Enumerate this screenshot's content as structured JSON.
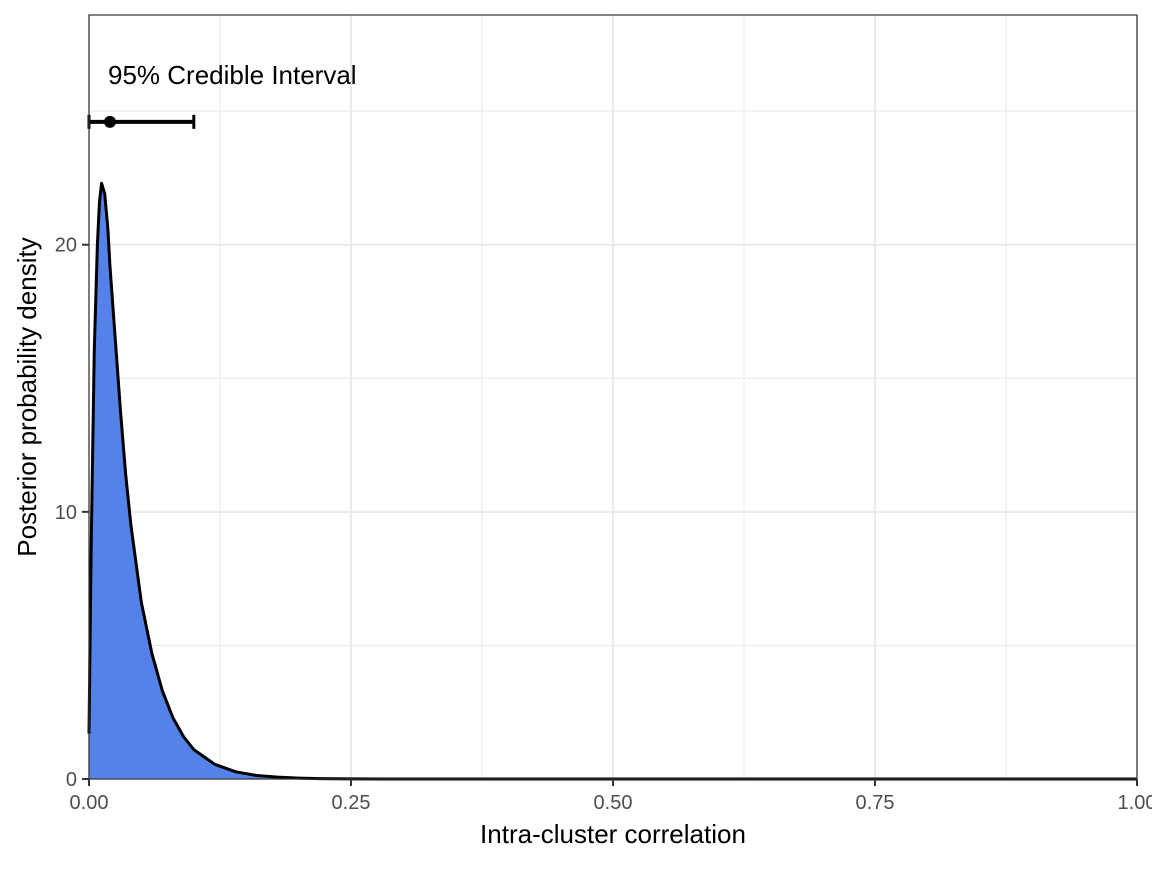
{
  "chart_data": {
    "type": "area",
    "title": "",
    "xlabel": "Intra-cluster correlation",
    "ylabel": "Posterior probability density",
    "xlim": [
      0,
      1
    ],
    "ylim": [
      0,
      28.6
    ],
    "x_ticks": [
      {
        "value": 0,
        "label": "0.00"
      },
      {
        "value": 0.25,
        "label": "0.25"
      },
      {
        "value": 0.5,
        "label": "0.50"
      },
      {
        "value": 0.75,
        "label": "0.75"
      },
      {
        "value": 1,
        "label": "1.00"
      }
    ],
    "y_ticks": [
      {
        "value": 0,
        "label": "0"
      },
      {
        "value": 10,
        "label": "10"
      },
      {
        "value": 20,
        "label": "20"
      }
    ],
    "grid": true,
    "annotation": "95% Credible Interval",
    "credible_interval": {
      "low": 0.0,
      "point": 0.02,
      "high": 0.1,
      "y": 24.6
    },
    "colors": {
      "fill": "#5482E8",
      "line": "#000000",
      "grid": "#EBEBEB",
      "panel_border": "#333333"
    },
    "series": [
      {
        "x": [
          0,
          0.002,
          0.005,
          0.008,
          0.01,
          0.012,
          0.015,
          0.018,
          0.02,
          0.025,
          0.03,
          0.035,
          0.04,
          0.05,
          0.06,
          0.07,
          0.08,
          0.09,
          0.1,
          0.12,
          0.14,
          0.16,
          0.18,
          0.2,
          0.22,
          0.25,
          0.28,
          0.3
        ],
        "y": [
          1.7,
          8.5,
          16,
          20,
          21.6,
          22.3,
          21.9,
          20.6,
          19.2,
          16.5,
          13.8,
          11.4,
          9.5,
          6.6,
          4.7,
          3.3,
          2.3,
          1.6,
          1.1,
          0.55,
          0.27,
          0.13,
          0.07,
          0.035,
          0.015,
          0.004,
          0.001,
          0
        ]
      }
    ]
  }
}
